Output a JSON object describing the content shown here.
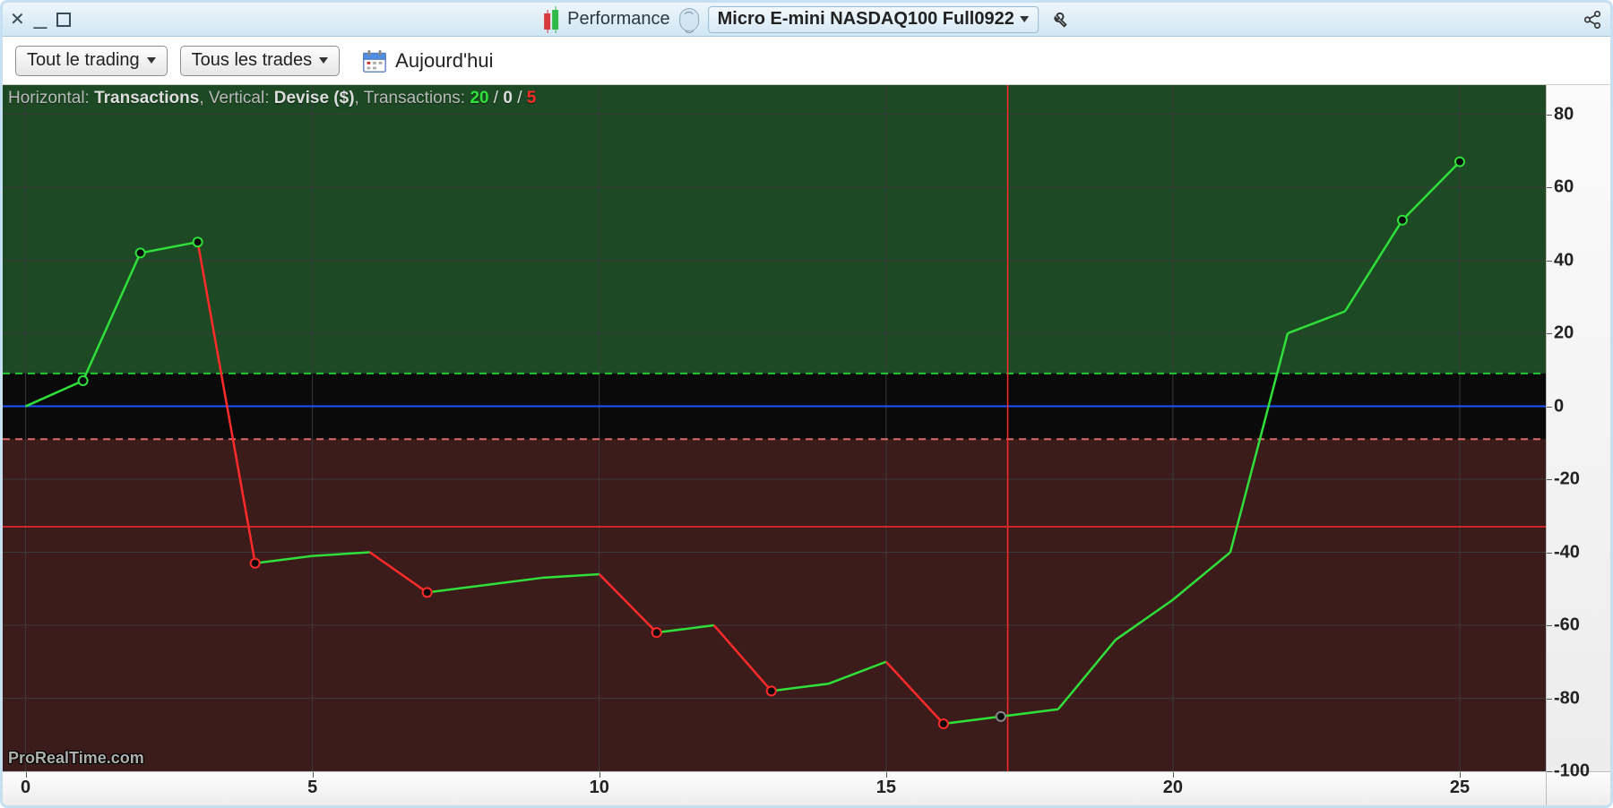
{
  "window": {
    "title": "Performance",
    "instrument": "Micro E-mini NASDAQ100 Full0922"
  },
  "toolbar": {
    "trading_dd": "Tout le trading",
    "trades_dd": "Tous les trades",
    "today": "Aujourd'hui"
  },
  "legend": {
    "horizontal_prefix": "Horizontal: ",
    "horizontal_value": "Transactions",
    "vertical_prefix": ", Vertical: ",
    "vertical_value": "Devise ($)",
    "trans_prefix": ", Transactions: ",
    "count_pos": "20",
    "count_zero": "0",
    "count_neg": "5",
    "sep": " / "
  },
  "watermark": "ProRealTime.com",
  "chart": {
    "type": "line",
    "background_color": "#0a0a0a",
    "pos_region_color": "#1d4a24",
    "neg_region_color": "#3c1b1b",
    "dash_pos_color": "#22cc33",
    "dash_neg_color": "#e06a6a",
    "dash_pos_y": 9,
    "dash_neg_y": -9,
    "zero_line_color": "#1e50ff",
    "grid_color": "#3a3a3a",
    "crosshair_color": "#ff2b2b",
    "crosshair_h_y": -33,
    "crosshair_v_x": 17.12,
    "line_up_color": "#2fe03a",
    "line_down_color": "#ff2b2b",
    "marker_up_stroke": "#2fe03a",
    "marker_down_stroke": "#ff2b2b",
    "marker_fill": "#0a0a0a",
    "marker_crosshair_stroke": "#888888",
    "xlim": [
      -0.4,
      26.5
    ],
    "ylim": [
      -100,
      88
    ],
    "yticks": [
      80,
      60,
      40,
      20,
      0,
      -20,
      -40,
      -60,
      -80,
      -100
    ],
    "xticks": [
      0,
      5,
      10,
      15,
      20,
      25
    ],
    "series": [
      {
        "x": 0,
        "y": 0,
        "marker": "none"
      },
      {
        "x": 1,
        "y": 7,
        "marker": "up"
      },
      {
        "x": 2,
        "y": 42,
        "marker": "up"
      },
      {
        "x": 3,
        "y": 45,
        "marker": "up"
      },
      {
        "x": 4,
        "y": -43,
        "marker": "down"
      },
      {
        "x": 5,
        "y": -41,
        "marker": "none"
      },
      {
        "x": 6,
        "y": -40,
        "marker": "none"
      },
      {
        "x": 7,
        "y": -51,
        "marker": "down"
      },
      {
        "x": 8,
        "y": -49,
        "marker": "none"
      },
      {
        "x": 9,
        "y": -47,
        "marker": "none"
      },
      {
        "x": 10,
        "y": -46,
        "marker": "none"
      },
      {
        "x": 11,
        "y": -62,
        "marker": "down"
      },
      {
        "x": 12,
        "y": -60,
        "marker": "none"
      },
      {
        "x": 13,
        "y": -78,
        "marker": "down"
      },
      {
        "x": 14,
        "y": -76,
        "marker": "none"
      },
      {
        "x": 15,
        "y": -70,
        "marker": "none"
      },
      {
        "x": 16,
        "y": -87,
        "marker": "down"
      },
      {
        "x": 17,
        "y": -85,
        "marker": "cross"
      },
      {
        "x": 18,
        "y": -83,
        "marker": "none"
      },
      {
        "x": 19,
        "y": -64,
        "marker": "none"
      },
      {
        "x": 20,
        "y": -53,
        "marker": "none"
      },
      {
        "x": 21,
        "y": -40,
        "marker": "none"
      },
      {
        "x": 22,
        "y": 20,
        "marker": "none"
      },
      {
        "x": 23,
        "y": 26,
        "marker": "none"
      },
      {
        "x": 24,
        "y": 51,
        "marker": "up"
      },
      {
        "x": 25,
        "y": 67,
        "marker": "up"
      }
    ]
  }
}
